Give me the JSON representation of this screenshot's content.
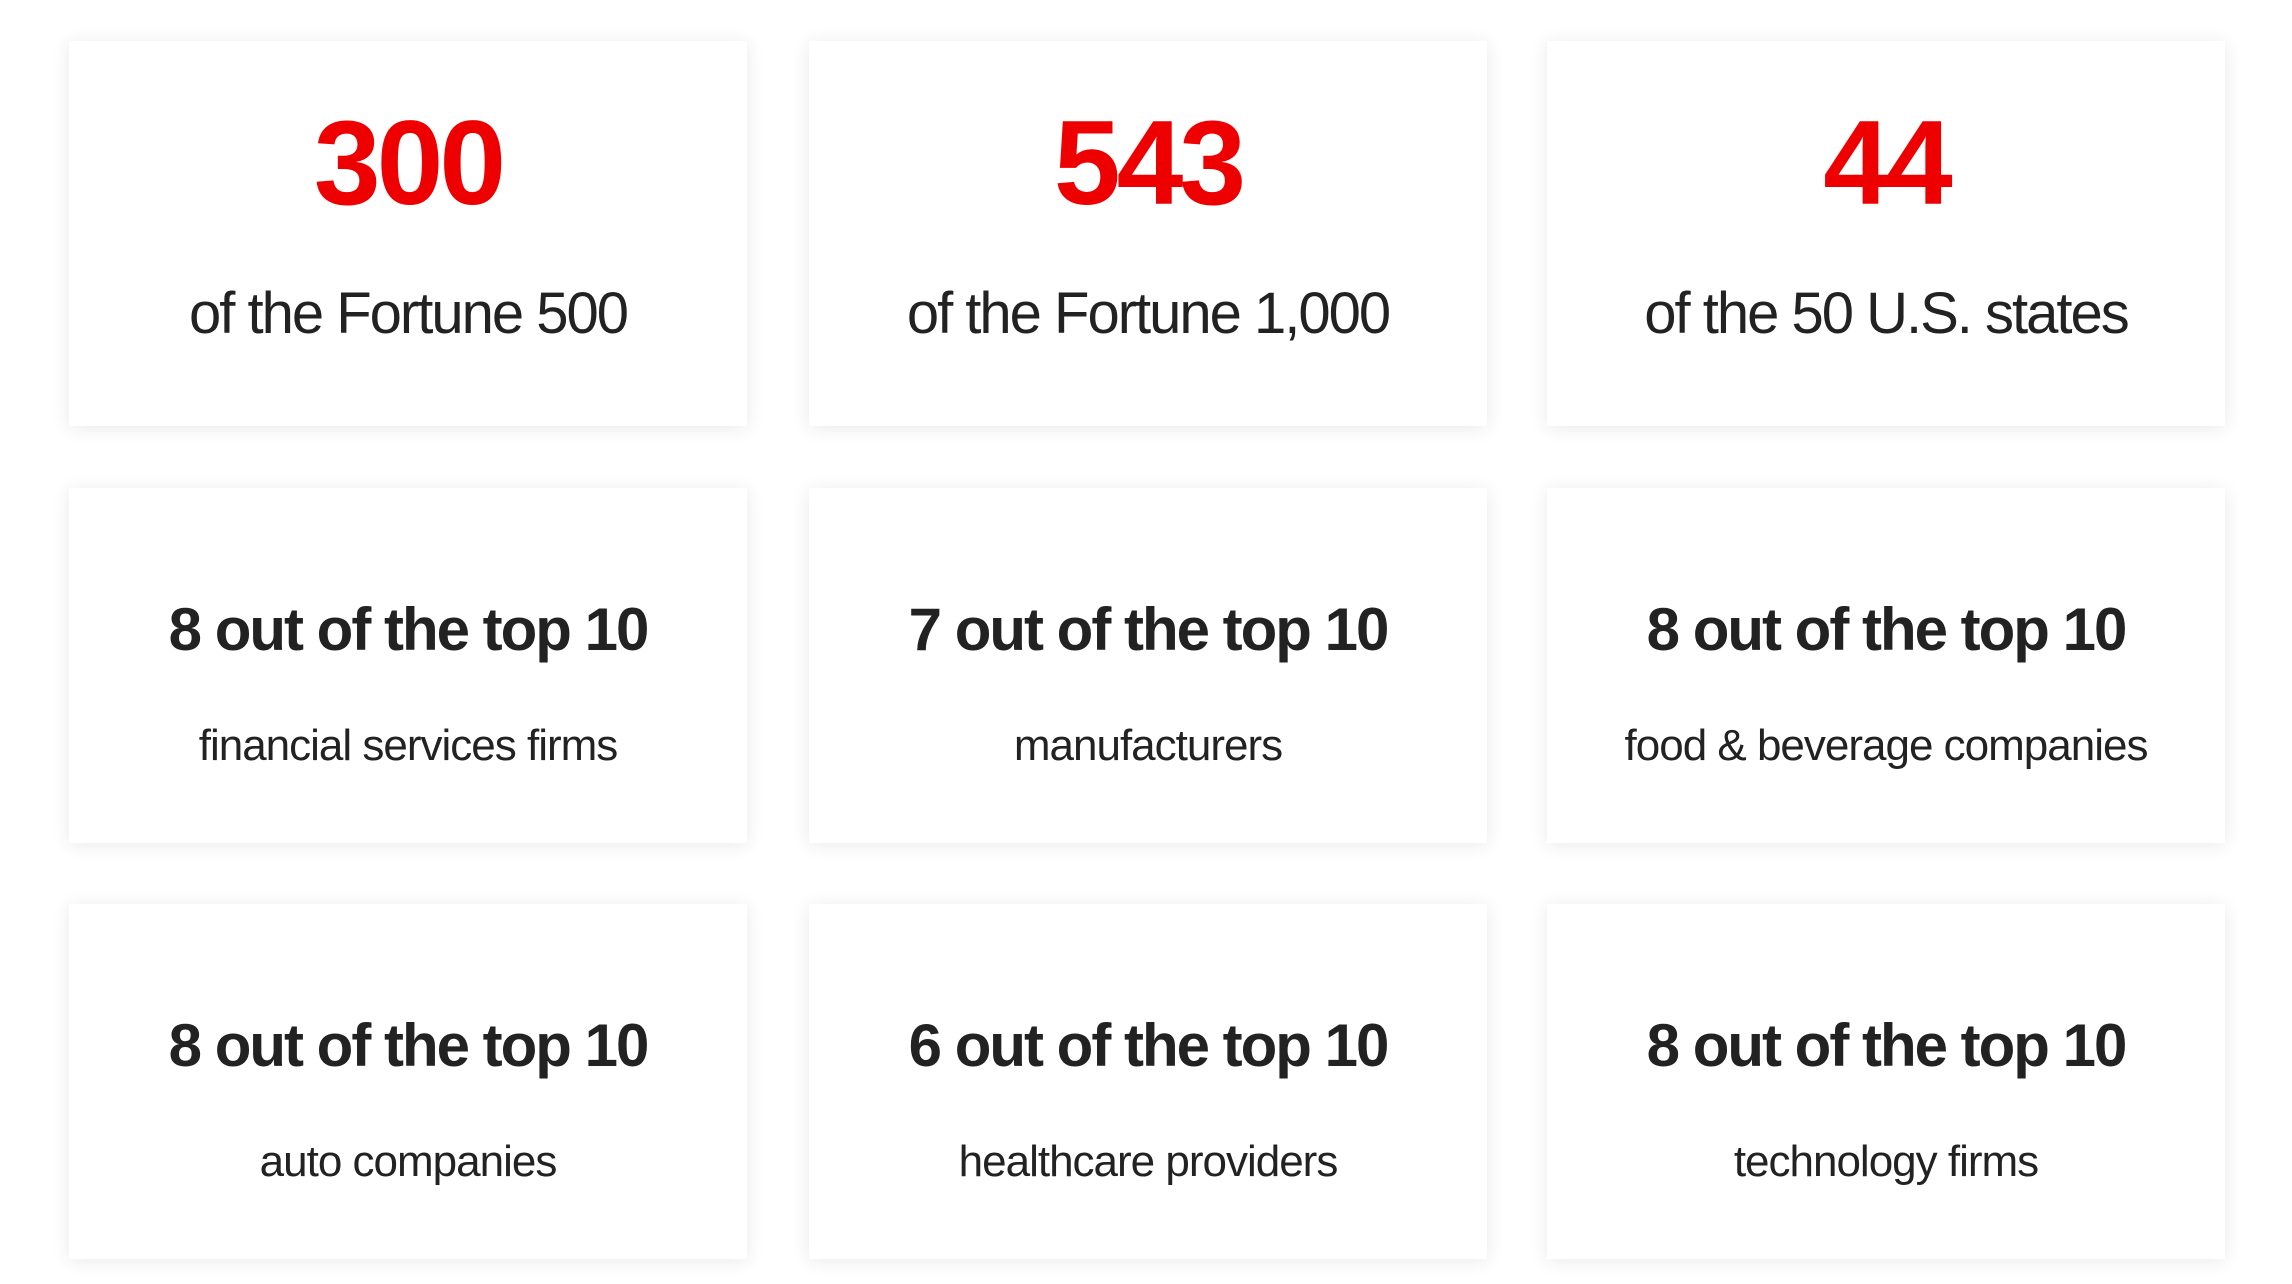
{
  "cards": [
    {
      "headline": "300",
      "description": "of the Fortune 500"
    },
    {
      "headline": "543",
      "description": "of the Fortune 1,000"
    },
    {
      "headline": "44",
      "description": "of the 50 U.S. states"
    },
    {
      "headline": "8 out of the top 10",
      "description": "financial services firms"
    },
    {
      "headline": "7 out of the top 10",
      "description": "manufacturers"
    },
    {
      "headline": "8 out of the top 10",
      "description": "food & beverage companies"
    },
    {
      "headline": "8 out of the top 10",
      "description": "auto companies"
    },
    {
      "headline": "6 out of the top 10",
      "description": "healthcare providers"
    },
    {
      "headline": "8 out of the top 10",
      "description": "technology firms"
    }
  ]
}
